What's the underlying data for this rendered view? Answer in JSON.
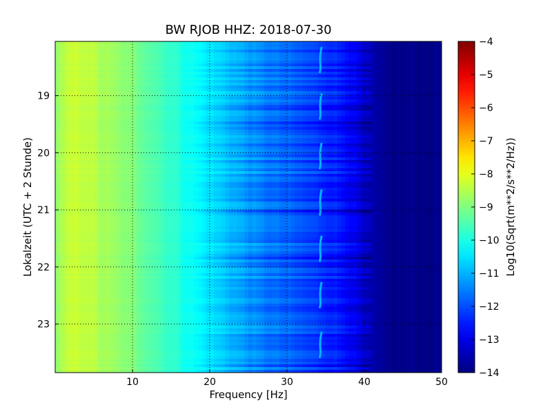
{
  "chart_data": {
    "type": "heatmap",
    "title": "BW RJOB HHZ: 2018-07-30",
    "xlabel": "Frequency [Hz]",
    "ylabel": "Lokalzeit (UTC + 2 Stunde)",
    "xlim": [
      0,
      50
    ],
    "ylim": [
      18.05,
      23.85
    ],
    "x_ticks": [
      10,
      20,
      30,
      40,
      50
    ],
    "y_ticks": [
      19,
      20,
      21,
      22,
      23
    ],
    "y_inverted": true,
    "grid": true,
    "colormap": "jet",
    "colorbar": {
      "label": "Log10(Sqrt(m**2/s**2/Hz))",
      "range": [
        -14,
        -4
      ],
      "ticks": [
        -4,
        -5,
        -6,
        -7,
        -8,
        -9,
        -10,
        -11,
        -12,
        -13,
        -14
      ]
    },
    "colorbar_tick_labels": [
      "−4",
      "−5",
      "−6",
      "−7",
      "−8",
      "−9",
      "−10",
      "−11",
      "−12",
      "−13",
      "−14"
    ],
    "spectral_profile": {
      "frequency_hz": [
        0,
        2,
        4,
        6,
        8,
        10,
        12,
        14,
        16,
        18,
        20,
        22,
        24,
        26,
        28,
        30,
        32,
        34,
        36,
        38,
        40,
        42,
        44,
        46,
        48,
        50
      ],
      "log10_amplitude": [
        -8.8,
        -8.3,
        -8.3,
        -8.6,
        -8.8,
        -9.0,
        -9.3,
        -9.6,
        -9.9,
        -10.2,
        -10.5,
        -10.8,
        -11.1,
        -11.4,
        -11.6,
        -11.8,
        -12.0,
        -12.2,
        -12.4,
        -12.7,
        -13.3,
        -13.8,
        -13.9,
        -13.9,
        -13.9,
        -13.9
      ]
    },
    "anomaly": {
      "frequency_hz": 34.3,
      "log10_amplitude": -11.0
    }
  }
}
